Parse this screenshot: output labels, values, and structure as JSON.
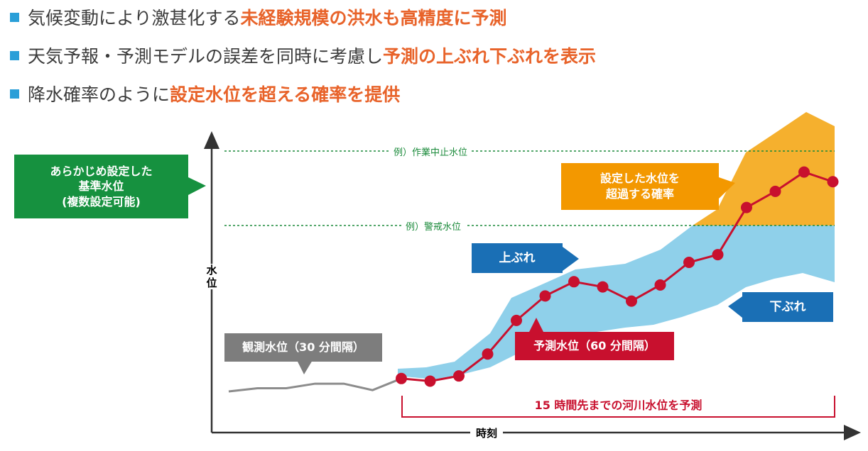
{
  "bullets": [
    {
      "plain": "気候変動により激甚化する",
      "highlight": "未経験規模の洪水も高精度に予測"
    },
    {
      "plain": "天気予報・予測モデルの誤差を同時に考慮し",
      "highlight": "予測の上ぶれ下ぶれを表示"
    },
    {
      "plain": "降水確率のように",
      "highlight": "設定水位を超える確率を提供"
    }
  ],
  "labels": {
    "reference_level": [
      "あらかじめ設定した",
      "基準水位",
      "(複数設定可能)"
    ],
    "exceed_prob": [
      "設定した水位を",
      "超過する確率"
    ],
    "upper": "上ぶれ",
    "lower": "下ぶれ",
    "observed": "観測水位（30 分間隔）",
    "forecast": "予測水位（60 分間隔）",
    "horizon": "15 時間先までの河川水位を予測",
    "work_stop": "例）作業中止水位",
    "warning": "例）警戒水位",
    "y_axis": "水位",
    "x_axis": "時刻"
  },
  "colors": {
    "green": "#16913f",
    "orange": "#f39800",
    "blue": "#1a6fb5",
    "gray": "#7d7d7d",
    "red": "#c8102e",
    "band_blue": "#8fd0ea",
    "band_orange": "#f5b02e"
  },
  "chart_data": {
    "type": "line",
    "observed": [
      [
        0,
        0
      ],
      [
        1,
        0.5
      ],
      [
        2,
        0.5
      ],
      [
        3,
        1.2
      ],
      [
        4,
        1.2
      ],
      [
        5,
        0.2
      ],
      [
        6,
        2.0
      ]
    ],
    "forecast": [
      [
        6,
        2.0
      ],
      [
        7,
        1.6
      ],
      [
        8,
        2.4
      ],
      [
        9,
        5.8
      ],
      [
        10,
        11
      ],
      [
        11,
        14.8
      ],
      [
        12,
        17.0
      ],
      [
        13,
        16.2
      ],
      [
        14,
        14.0
      ],
      [
        15,
        16.5
      ],
      [
        16,
        20.0
      ],
      [
        17,
        21.2
      ],
      [
        18,
        28.5
      ],
      [
        19,
        31.0
      ],
      [
        20,
        34.0
      ],
      [
        21,
        32.5
      ]
    ]
  }
}
